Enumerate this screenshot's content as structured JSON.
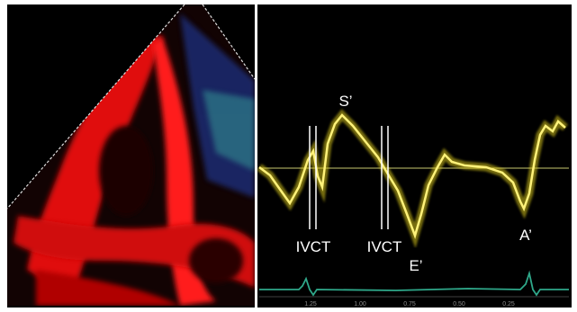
{
  "annotations": [
    "S’",
    "IVCT",
    "IVCT",
    "E’",
    "A’"
  ],
  "time_axis": [
    "1.25",
    "1.00",
    "0.75",
    "0.50",
    "0.25"
  ]
}
